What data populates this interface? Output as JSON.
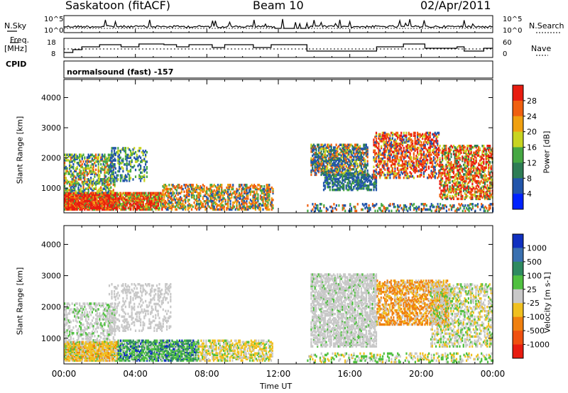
{
  "header": {
    "radar": "Saskatoon (fitACF)",
    "beam": "Beam 10",
    "date": "02/Apr/2011"
  },
  "side_labels": {
    "nsky": "N.Sky",
    "freq": "Freq.",
    "freq_unit": "[MHz]",
    "cpid": "CPID",
    "nsearch": "N.Search",
    "nave": "Nave"
  },
  "noise_axis": {
    "left_top": "10^5",
    "left_bottom": "10^0",
    "right_top": "10^5",
    "right_bottom": "10^0"
  },
  "freq_axis": {
    "left_top": "18",
    "left_bottom": "8",
    "right_top": "60",
    "right_bottom": "0"
  },
  "cpid_text": "normalsound (fast) -157",
  "chart_data": [
    {
      "type": "heatmap",
      "name": "power-panel",
      "ylabel": "Slant Range [km]",
      "xlabel": "",
      "x_range": [
        0,
        24
      ],
      "y_range": [
        180,
        4600
      ],
      "y_ticks": [
        "1000",
        "2000",
        "3000",
        "4000"
      ],
      "colorbar_label": "Power [dB]",
      "colorbar_ticks": [
        "4",
        "8",
        "12",
        "16",
        "20",
        "24",
        "28"
      ],
      "colors": [
        "#0022ff",
        "#2255aa",
        "#2e7d55",
        "#46a843",
        "#c8d420",
        "#f0a010",
        "#f06010",
        "#e81c10"
      ]
    },
    {
      "type": "heatmap",
      "name": "velocity-panel",
      "ylabel": "Slant Range [km]",
      "xlabel": "Time UT",
      "x_range": [
        0,
        24
      ],
      "y_range": [
        180,
        4600
      ],
      "x_ticks": [
        "00:00",
        "04:00",
        "08:00",
        "12:00",
        "16:00",
        "20:00",
        "00:00"
      ],
      "y_ticks": [
        "1000",
        "2000",
        "3000",
        "4000"
      ],
      "colorbar_label": "Velocity [m s-1]",
      "colorbar_ticks": [
        "1000",
        "500",
        "100",
        "25",
        "-25",
        "-100",
        "-500",
        "-1000"
      ],
      "colors": [
        "#1030c0",
        "#3a70b0",
        "#2e8a60",
        "#50c040",
        "#c8c8c8",
        "#f0c020",
        "#f08010",
        "#f05010",
        "#e81c10"
      ]
    }
  ]
}
